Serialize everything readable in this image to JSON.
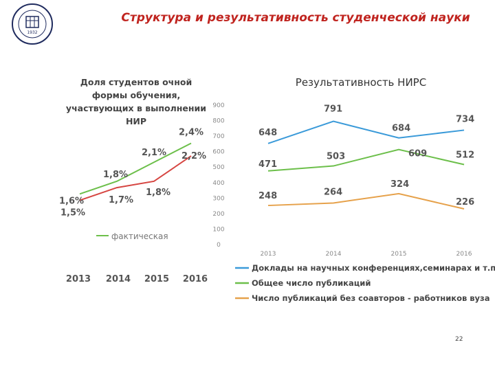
{
  "header": {
    "title": "Структура и результативность студенческой науки",
    "logo_text": "ОСУДАРСТВЕННЫЙ ГОРНЫЙ УНИВЕРСИТЕТ 1932"
  },
  "page_number": "22",
  "colors": {
    "title": "#c0241f",
    "blue": "#3a9ad9",
    "green": "#6cbf4a",
    "red": "#d64541",
    "orange": "#e6a14a",
    "navy": "#1f2b5e"
  },
  "chart_data": [
    {
      "type": "line",
      "title": "Доля студентов очной формы обучения, участвующих в выполнении НИР",
      "categories": [
        "2013",
        "2014",
        "2015",
        "2016"
      ],
      "series": [
        {
          "name": "фактическая",
          "values": [
            1.6,
            1.8,
            2.1,
            2.4
          ],
          "labels": [
            "1,6%",
            "1,8%",
            "2,1%",
            "2,4%"
          ],
          "color": "#6cbf4a"
        },
        {
          "name": "",
          "values": [
            1.5,
            1.7,
            1.8,
            2.2
          ],
          "labels": [
            "1,5%",
            "1,7%",
            "1,8%",
            "2,2%"
          ],
          "color": "#d64541"
        }
      ],
      "ylim": [
        1.3,
        2.6
      ],
      "legend": "bottom"
    },
    {
      "type": "line",
      "title": "Результативность НИРС",
      "categories": [
        "2013",
        "2014",
        "2015",
        "2016"
      ],
      "yticks": [
        "0",
        "100",
        "200",
        "300",
        "400",
        "500",
        "600",
        "700",
        "800",
        "900"
      ],
      "ylim": [
        0,
        900
      ],
      "series": [
        {
          "name": "Доклады на научных конференциях,семинарах и т.п.",
          "values": [
            648,
            791,
            684,
            734
          ],
          "color": "#3a9ad9"
        },
        {
          "name": "Общее число публикаций",
          "values": [
            471,
            503,
            609,
            512
          ],
          "color": "#6cbf4a"
        },
        {
          "name": "Число публикаций без соавторов - работников вуза",
          "values": [
            248,
            264,
            324,
            226
          ],
          "color": "#e6a14a"
        }
      ],
      "legend": "bottom"
    }
  ]
}
